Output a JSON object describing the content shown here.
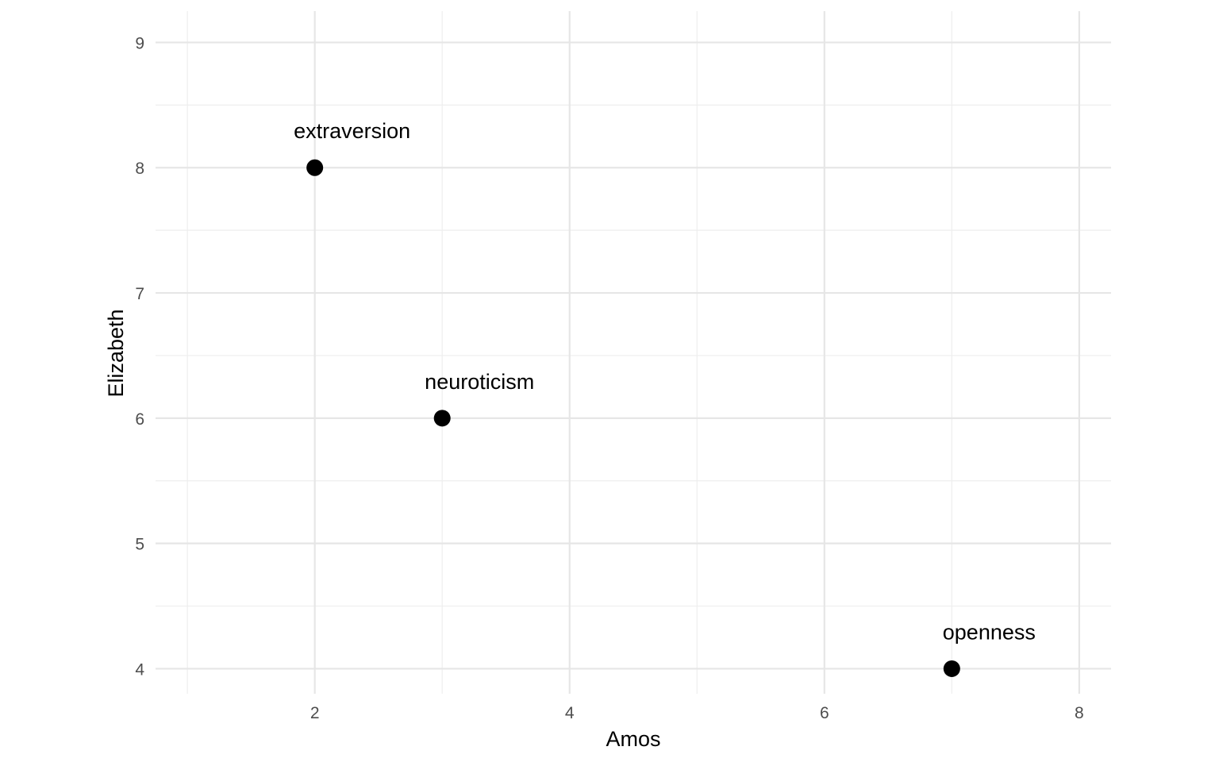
{
  "chart_data": {
    "type": "scatter",
    "title": "",
    "xlabel": "Amos",
    "ylabel": "Elizabeth",
    "xlim": [
      0.75,
      8.25
    ],
    "ylim": [
      3.8,
      9.25
    ],
    "x_ticks": [
      2,
      4,
      6,
      8
    ],
    "x_minor_ticks": [
      1,
      3,
      5,
      7
    ],
    "y_ticks": [
      4,
      5,
      6,
      7,
      8,
      9
    ],
    "y_minor_ticks": [
      4.5,
      5.5,
      6.5,
      7.5,
      8.5
    ],
    "grid": true,
    "point_color": "#000000",
    "points": [
      {
        "x": 2,
        "y": 8,
        "label": "extraversion"
      },
      {
        "x": 3,
        "y": 6,
        "label": "neuroticism"
      },
      {
        "x": 7,
        "y": 4,
        "label": "openness"
      }
    ]
  }
}
